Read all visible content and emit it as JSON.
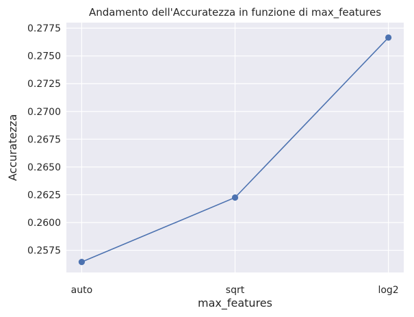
{
  "chart_data": {
    "type": "line",
    "title": "Andamento dell'Accuratezza in funzione di max_features",
    "xlabel": "max_features",
    "ylabel": "Accuratezza",
    "categories": [
      "auto",
      "sqrt",
      "log2"
    ],
    "series": [
      {
        "values": [
          0.25645,
          0.26225,
          0.27665
        ]
      }
    ],
    "ylim": [
      0.2555,
      0.278
    ],
    "yticks": [
      0.2575,
      0.26,
      0.2625,
      0.265,
      0.2675,
      0.27,
      0.2725,
      0.275,
      0.2775
    ],
    "ytick_labels": [
      "0.2575",
      "0.2600",
      "0.2625",
      "0.2650",
      "0.2675",
      "0.2700",
      "0.2725",
      "0.2750",
      "0.2775"
    ],
    "grid": true,
    "colors": {
      "background": "#eaeaf2",
      "grid": "#ffffff",
      "line": "#4c72b0"
    }
  }
}
